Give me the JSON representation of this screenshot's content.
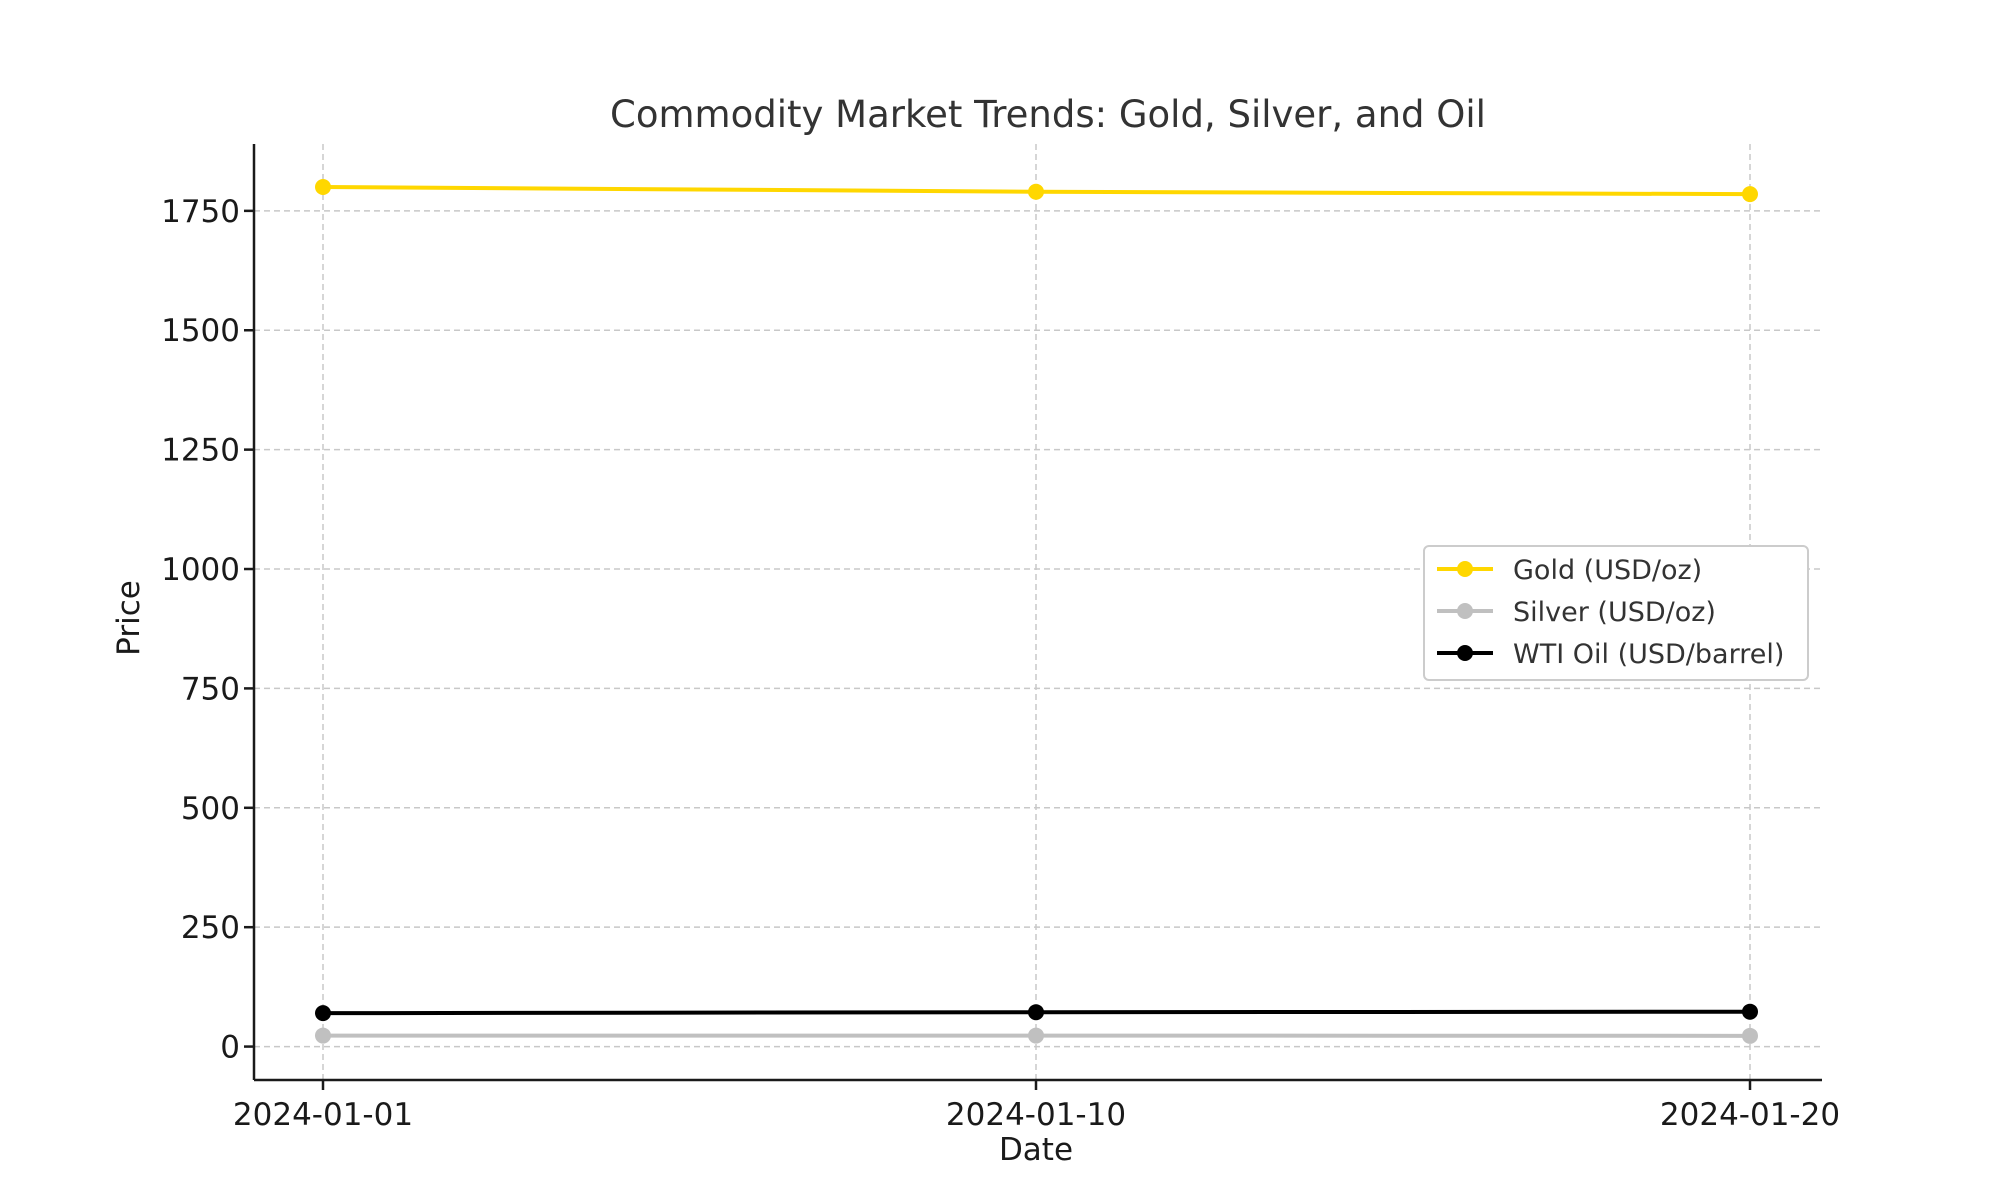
{
  "chart_data": {
    "type": "line",
    "title": "Commodity Market Trends: Gold, Silver, and Oil",
    "xlabel": "Date",
    "ylabel": "Price",
    "x": [
      "2024-01-01",
      "2024-01-10",
      "2024-01-20"
    ],
    "ylim": [
      -70,
      1890
    ],
    "yticks": [
      0,
      250,
      500,
      750,
      1000,
      1250,
      1500,
      1750
    ],
    "grid": true,
    "legend_position": "center-right",
    "series": [
      {
        "name": "Gold (USD/oz)",
        "color": "#FFD700",
        "values": [
          1800,
          1790,
          1785
        ]
      },
      {
        "name": "Silver (USD/oz)",
        "color": "#C0C0C0",
        "values": [
          23,
          23,
          22.5
        ]
      },
      {
        "name": "WTI Oil (USD/barrel)",
        "color": "#000000",
        "values": [
          70,
          72,
          73
        ]
      }
    ]
  }
}
